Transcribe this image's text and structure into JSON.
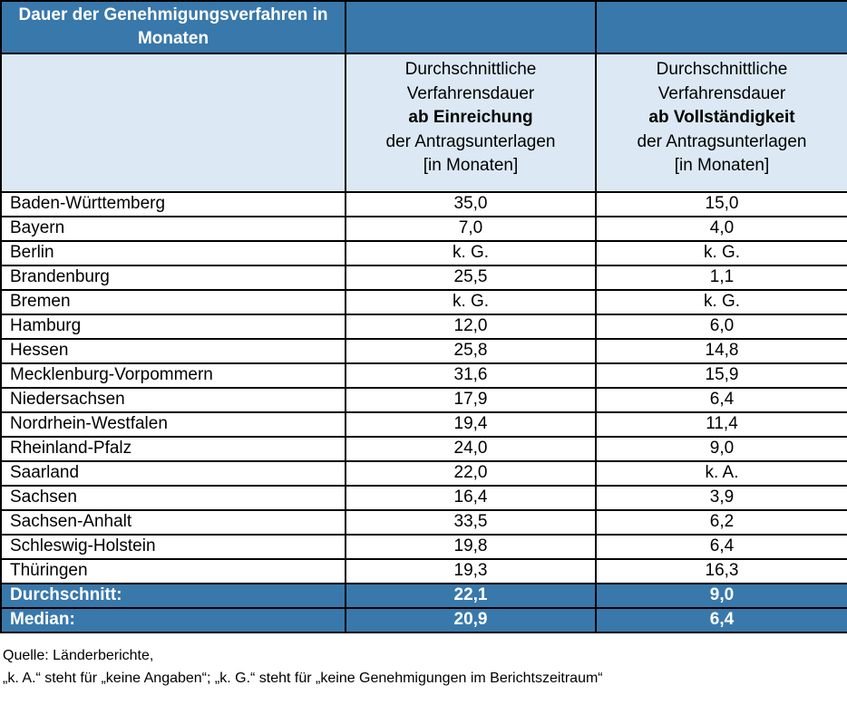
{
  "colors": {
    "header_bg": "#3978AB",
    "subheader_bg": "#DCE9F5",
    "border_color": "#000000",
    "header_text": "#FFFFFF",
    "body_text": "#000000"
  },
  "header": {
    "title": "Dauer der Genehmigungsverfahren in Monaten"
  },
  "subheader": {
    "col2": {
      "line1": "Durchschnittliche",
      "line2": "Verfahrensdauer",
      "line3": "ab Einreichung",
      "line4": "der Antragsunterlagen",
      "line5": "[in Monaten]"
    },
    "col3": {
      "line1": "Durchschnittliche",
      "line2": "Verfahrensdauer",
      "line3": "ab Vollständigkeit",
      "line4": "der Antragsunterlagen",
      "line5": "[in Monaten]"
    }
  },
  "rows": [
    {
      "state": "Baden-Württemberg",
      "ab_einreichung": "35,0",
      "ab_vollstaendigkeit": "15,0"
    },
    {
      "state": "Bayern",
      "ab_einreichung": "7,0",
      "ab_vollstaendigkeit": "4,0"
    },
    {
      "state": "Berlin",
      "ab_einreichung": "k. G.",
      "ab_vollstaendigkeit": "k. G."
    },
    {
      "state": "Brandenburg",
      "ab_einreichung": "25,5",
      "ab_vollstaendigkeit": "1,1"
    },
    {
      "state": "Bremen",
      "ab_einreichung": "k. G.",
      "ab_vollstaendigkeit": "k. G."
    },
    {
      "state": "Hamburg",
      "ab_einreichung": "12,0",
      "ab_vollstaendigkeit": "6,0"
    },
    {
      "state": "Hessen",
      "ab_einreichung": "25,8",
      "ab_vollstaendigkeit": "14,8"
    },
    {
      "state": "Mecklenburg-Vorpommern",
      "ab_einreichung": "31,6",
      "ab_vollstaendigkeit": "15,9"
    },
    {
      "state": "Niedersachsen",
      "ab_einreichung": "17,9",
      "ab_vollstaendigkeit": "6,4"
    },
    {
      "state": "Nordrhein-Westfalen",
      "ab_einreichung": "19,4",
      "ab_vollstaendigkeit": "11,4"
    },
    {
      "state": "Rheinland-Pfalz",
      "ab_einreichung": "24,0",
      "ab_vollstaendigkeit": "9,0"
    },
    {
      "state": "Saarland",
      "ab_einreichung": "22,0",
      "ab_vollstaendigkeit": "k. A."
    },
    {
      "state": "Sachsen",
      "ab_einreichung": "16,4",
      "ab_vollstaendigkeit": "3,9"
    },
    {
      "state": "Sachsen-Anhalt",
      "ab_einreichung": "33,5",
      "ab_vollstaendigkeit": "6,2"
    },
    {
      "state": "Schleswig-Holstein",
      "ab_einreichung": "19,8",
      "ab_vollstaendigkeit": "6,4"
    },
    {
      "state": "Thüringen",
      "ab_einreichung": "19,3",
      "ab_vollstaendigkeit": "16,3"
    }
  ],
  "summary": [
    {
      "label": "Durchschnitt:",
      "ab_einreichung": "22,1",
      "ab_vollstaendigkeit": "9,0"
    },
    {
      "label": "Median:",
      "ab_einreichung": "20,9",
      "ab_vollstaendigkeit": "6,4"
    }
  ],
  "footer": {
    "line1": "Quelle: Länderberichte,",
    "line2": "„k. A.“ steht für „keine Angaben“; „k. G.“ steht für „keine Genehmigungen im Berichtszeitraum“"
  }
}
